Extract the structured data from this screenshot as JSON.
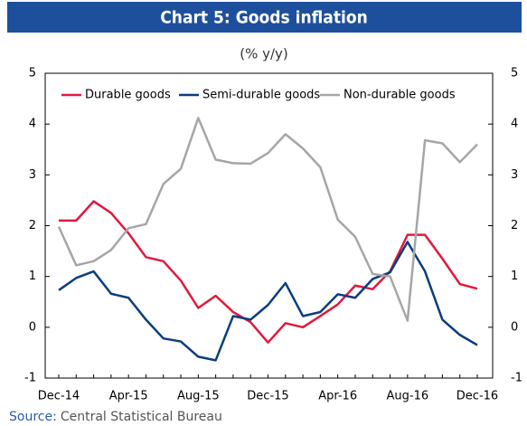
{
  "chart_data": {
    "type": "line",
    "title": "Chart 5: Goods inflation",
    "subtitle": "(% y/y)",
    "source_label": "Source:",
    "source": "Central Statistical Bureau",
    "categories": [
      "Dec-14",
      null,
      null,
      null,
      "Apr-15",
      null,
      null,
      null,
      "Aug-15",
      null,
      null,
      null,
      "Dec-15",
      null,
      null,
      null,
      "Apr-16",
      null,
      null,
      null,
      "Aug-16",
      null,
      null,
      null,
      "Dec-16"
    ],
    "series": [
      {
        "name": "Durable goods",
        "color": "#e0193c",
        "values": [
          2.1,
          2.1,
          2.48,
          2.25,
          1.85,
          1.38,
          1.3,
          0.92,
          0.38,
          0.62,
          0.3,
          0.1,
          -0.3,
          0.08,
          0.0,
          0.22,
          0.45,
          0.82,
          0.75,
          1.1,
          1.82,
          1.82,
          1.35,
          0.85,
          0.76
        ]
      },
      {
        "name": "Semi-durable goods",
        "color": "#0a3d7e",
        "values": [
          0.73,
          0.97,
          1.1,
          0.66,
          0.58,
          0.15,
          -0.22,
          -0.28,
          -0.58,
          -0.65,
          0.22,
          0.15,
          0.44,
          0.87,
          0.22,
          0.3,
          0.65,
          0.58,
          0.95,
          1.08,
          1.68,
          1.1,
          0.15,
          -0.15,
          -0.35
        ]
      },
      {
        "name": "Non-durable goods",
        "color": "#a6a6a6",
        "values": [
          1.98,
          1.22,
          1.3,
          1.52,
          1.95,
          2.03,
          2.82,
          3.12,
          4.12,
          3.3,
          3.23,
          3.22,
          3.43,
          3.8,
          3.52,
          3.15,
          2.12,
          1.78,
          1.05,
          1.0,
          0.13,
          3.68,
          3.62,
          3.25,
          3.6
        ]
      }
    ],
    "ylim": [
      -1,
      5
    ],
    "yticks": [
      -1,
      0,
      1,
      2,
      3,
      4,
      5
    ],
    "y2lim": [
      -1,
      5
    ],
    "y2ticks": [
      -1,
      0,
      1,
      2,
      3,
      4,
      5
    ],
    "banner_color": "#1e4f9c",
    "grid": false,
    "legend": "top"
  }
}
